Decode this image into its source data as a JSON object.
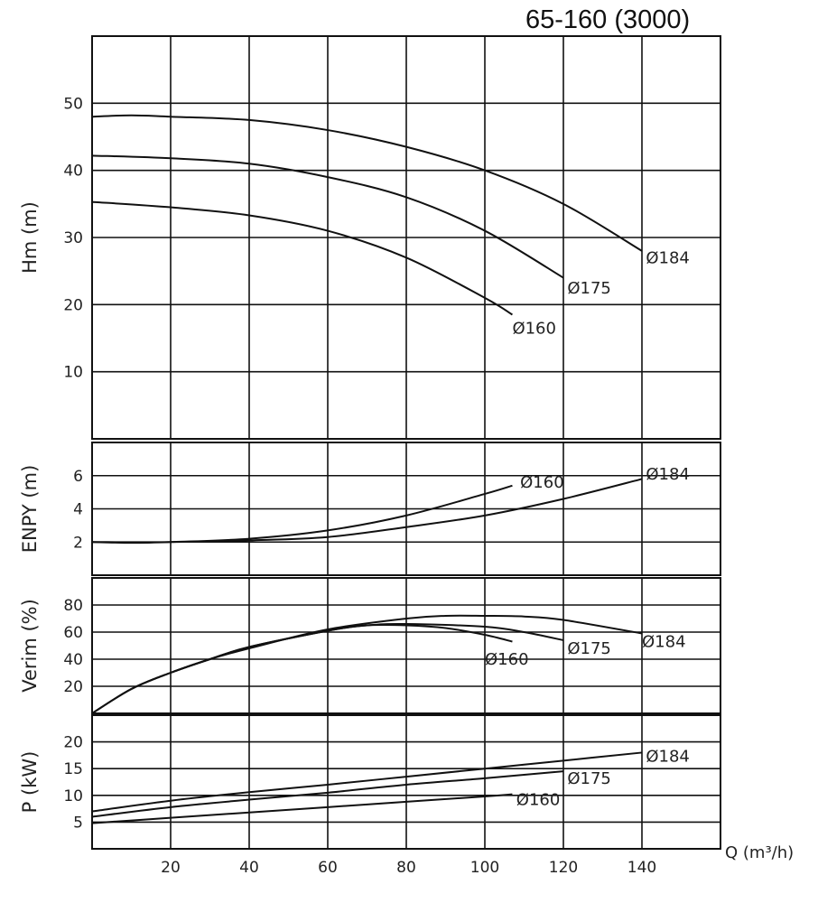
{
  "title": "65-160 (3000)",
  "chart_data": [
    {
      "type": "line",
      "id": "hm",
      "ylabel": "Hm (m)",
      "ylim": [
        0,
        60
      ],
      "yticks": [
        10,
        20,
        30,
        40,
        50
      ],
      "xlim": [
        0,
        160
      ],
      "grid": true,
      "series": [
        {
          "name": "Ø184",
          "points": [
            [
              0,
              48
            ],
            [
              10,
              48.2
            ],
            [
              20,
              48
            ],
            [
              40,
              47.5
            ],
            [
              60,
              46
            ],
            [
              80,
              43.5
            ],
            [
              100,
              40
            ],
            [
              120,
              35
            ],
            [
              140,
              28
            ]
          ],
          "label_at": [
            141,
            27
          ]
        },
        {
          "name": "Ø175",
          "points": [
            [
              0,
              42.2
            ],
            [
              20,
              41.8
            ],
            [
              40,
              41
            ],
            [
              60,
              39
            ],
            [
              80,
              36
            ],
            [
              100,
              31
            ],
            [
              120,
              24
            ]
          ],
          "label_at": [
            121,
            22.5
          ]
        },
        {
          "name": "Ø160",
          "points": [
            [
              0,
              35.3
            ],
            [
              20,
              34.5
            ],
            [
              40,
              33.3
            ],
            [
              60,
              31
            ],
            [
              80,
              27
            ],
            [
              100,
              21
            ],
            [
              107,
              18.5
            ]
          ],
          "label_at": [
            107,
            16.5
          ]
        }
      ]
    },
    {
      "type": "line",
      "id": "enpy",
      "ylabel": "ENPY (m)",
      "ylim": [
        0,
        8
      ],
      "yticks": [
        2,
        4,
        6
      ],
      "xlim": [
        0,
        160
      ],
      "grid": true,
      "series": [
        {
          "name": "Ø160",
          "points": [
            [
              0,
              2
            ],
            [
              10,
              1.95
            ],
            [
              20,
              2
            ],
            [
              40,
              2.2
            ],
            [
              60,
              2.7
            ],
            [
              80,
              3.6
            ],
            [
              100,
              4.9
            ],
            [
              107,
              5.4
            ]
          ],
          "label_at": [
            109,
            5.6
          ]
        },
        {
          "name": "Ø184",
          "points": [
            [
              0,
              2
            ],
            [
              20,
              2
            ],
            [
              40,
              2.1
            ],
            [
              60,
              2.3
            ],
            [
              80,
              2.9
            ],
            [
              100,
              3.6
            ],
            [
              120,
              4.6
            ],
            [
              140,
              5.8
            ]
          ],
          "label_at": [
            141,
            6.1
          ]
        }
      ]
    },
    {
      "type": "line",
      "id": "verim",
      "ylabel": "Verim (%)",
      "ylim": [
        0,
        100
      ],
      "yticks": [
        20,
        40,
        60,
        80
      ],
      "xlim": [
        0,
        160
      ],
      "grid": true,
      "series": [
        {
          "name": "Ø184",
          "points": [
            [
              0,
              0
            ],
            [
              10,
              18
            ],
            [
              20,
              30
            ],
            [
              30,
              40
            ],
            [
              40,
              48
            ],
            [
              60,
              62
            ],
            [
              80,
              70
            ],
            [
              90,
              72
            ],
            [
              100,
              72
            ],
            [
              110,
              71.5
            ],
            [
              120,
              69
            ],
            [
              140,
              59
            ]
          ],
          "label_at": [
            140,
            53
          ]
        },
        {
          "name": "Ø175",
          "points": [
            [
              0,
              0
            ],
            [
              10,
              18
            ],
            [
              20,
              30
            ],
            [
              30,
              40
            ],
            [
              40,
              49
            ],
            [
              60,
              61
            ],
            [
              70,
              65
            ],
            [
              80,
              66
            ],
            [
              100,
              64
            ],
            [
              110,
              60
            ],
            [
              120,
              54
            ]
          ],
          "label_at": [
            121,
            48
          ]
        },
        {
          "name": "Ø160",
          "points": [
            [
              0,
              0
            ],
            [
              10,
              18
            ],
            [
              20,
              30
            ],
            [
              30,
              40
            ],
            [
              40,
              49
            ],
            [
              60,
              61
            ],
            [
              70,
              65
            ],
            [
              80,
              65
            ],
            [
              90,
              63
            ],
            [
              100,
              58
            ],
            [
              107,
              53
            ]
          ],
          "label_at": [
            100,
            40
          ]
        }
      ]
    },
    {
      "type": "line",
      "id": "power",
      "ylabel": "P (kW)",
      "ylim": [
        0,
        25
      ],
      "yticks": [
        5,
        10,
        15,
        20
      ],
      "xlim": [
        0,
        160
      ],
      "xticks": [
        20,
        40,
        60,
        80,
        100,
        120,
        140
      ],
      "xlabel": "Q (m³/h)",
      "grid": true,
      "series": [
        {
          "name": "Ø184",
          "points": [
            [
              0,
              7
            ],
            [
              20,
              9
            ],
            [
              40,
              10.6
            ],
            [
              60,
              12
            ],
            [
              80,
              13.5
            ],
            [
              100,
              15
            ],
            [
              120,
              16.5
            ],
            [
              140,
              18
            ]
          ],
          "label_at": [
            141,
            17.3
          ]
        },
        {
          "name": "Ø175",
          "points": [
            [
              0,
              6
            ],
            [
              20,
              7.8
            ],
            [
              40,
              9.2
            ],
            [
              60,
              10.5
            ],
            [
              80,
              12
            ],
            [
              100,
              13.2
            ],
            [
              120,
              14.5
            ]
          ],
          "label_at": [
            121,
            13.2
          ]
        },
        {
          "name": "Ø160",
          "points": [
            [
              0,
              4.8
            ],
            [
              20,
              5.8
            ],
            [
              40,
              6.8
            ],
            [
              60,
              7.8
            ],
            [
              80,
              8.8
            ],
            [
              100,
              9.8
            ],
            [
              107,
              10.2
            ]
          ],
          "label_at": [
            108,
            9.2
          ]
        }
      ]
    }
  ]
}
